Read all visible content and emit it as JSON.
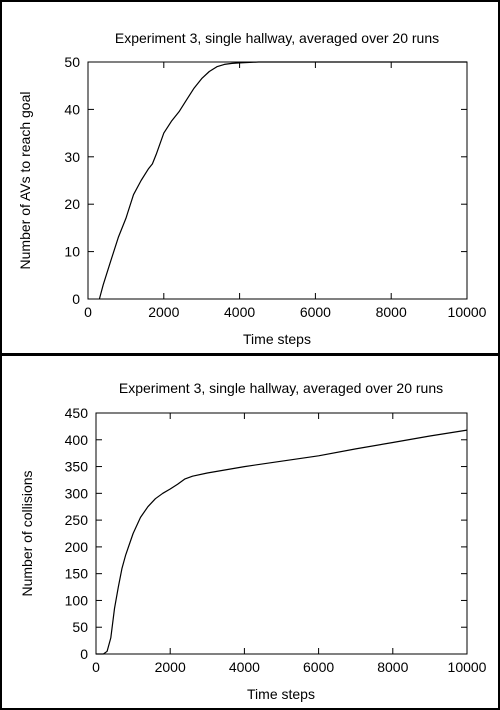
{
  "chart_data": [
    {
      "type": "line",
      "title": "Experiment 3, single hallway, averaged over 20 runs",
      "xlabel": "Time steps",
      "ylabel": "Number of AVs to reach goal",
      "xlim": [
        0,
        10000
      ],
      "ylim": [
        0,
        50
      ],
      "xticks": [
        0,
        2000,
        4000,
        6000,
        8000,
        10000
      ],
      "yticks": [
        0,
        10,
        20,
        30,
        40,
        50
      ],
      "grid": false,
      "series": [
        {
          "x": [
            300,
            400,
            600,
            800,
            1000,
            1200,
            1400,
            1600,
            1700,
            1800,
            2000,
            2200,
            2400,
            2600,
            2800,
            3000,
            3200,
            3400,
            3600,
            3800,
            4000,
            4500,
            5000,
            6000,
            8000,
            10000
          ],
          "y": [
            0,
            3,
            8,
            13,
            17,
            22,
            25,
            27.5,
            28.5,
            30.5,
            35,
            37.5,
            39.5,
            42,
            44.5,
            46.5,
            48,
            49,
            49.5,
            49.7,
            49.8,
            50,
            50,
            50,
            50,
            50
          ]
        }
      ]
    },
    {
      "type": "line",
      "title": "Experiment 3, single hallway, averaged over 20 runs",
      "xlabel": "Time steps",
      "ylabel": "Number of collisions",
      "xlim": [
        0,
        10000
      ],
      "ylim": [
        0,
        450
      ],
      "xticks": [
        0,
        2000,
        4000,
        6000,
        8000,
        10000
      ],
      "yticks": [
        0,
        50,
        100,
        150,
        200,
        250,
        300,
        350,
        400,
        450
      ],
      "grid": false,
      "series": [
        {
          "x": [
            0,
            200,
            300,
            400,
            500,
            600,
            700,
            800,
            1000,
            1200,
            1400,
            1600,
            1800,
            2000,
            2200,
            2400,
            2600,
            3000,
            4000,
            5000,
            6000,
            7000,
            8000,
            9000,
            10000
          ],
          "y": [
            0,
            0,
            5,
            30,
            85,
            125,
            160,
            185,
            225,
            255,
            275,
            290,
            300,
            308,
            317,
            327,
            332,
            338,
            350,
            360,
            370,
            383,
            395,
            407,
            418
          ]
        }
      ]
    }
  ]
}
